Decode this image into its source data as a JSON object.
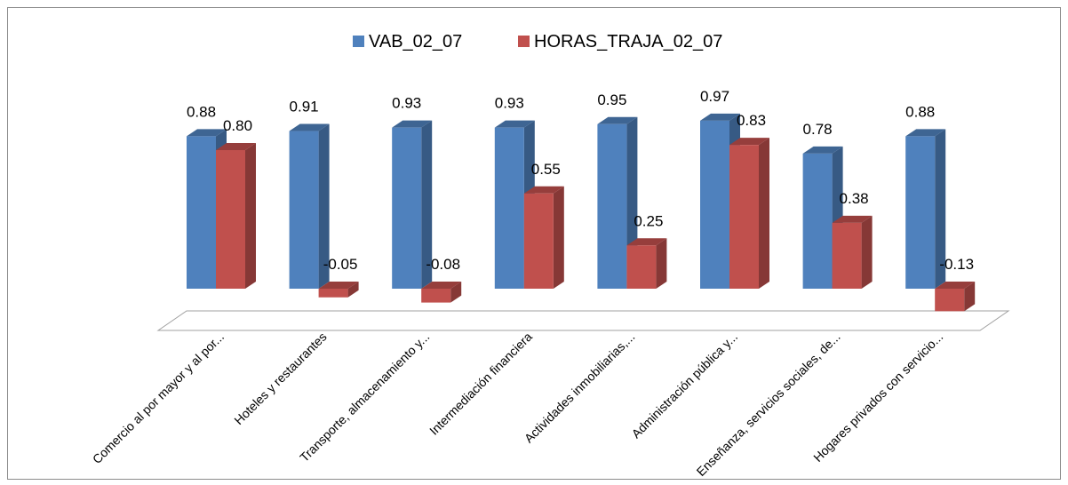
{
  "chart_data": {
    "type": "bar3d",
    "categories": [
      "Comercio al por mayor y al por...",
      "Hoteles y restaurantes",
      "Transporte, almacenamiento y...",
      "Intermediación financiera",
      "Actividades inmobiliarias,...",
      "Administración pública y...",
      "Enseñanza, servicios sociales, de...",
      "Hogares privados con servicio..."
    ],
    "series": [
      {
        "name": "VAB_02_07",
        "color": "#4f81bd",
        "values": [
          0.88,
          0.91,
          0.93,
          0.93,
          0.95,
          0.97,
          0.78,
          0.88
        ],
        "value_labels": [
          "0.88",
          "0.91",
          "0.93",
          "0.93",
          "0.95",
          "0.97",
          "0.78",
          "0.88"
        ]
      },
      {
        "name": "HORAS_TRAJA_02_07",
        "color": "#c0504d",
        "values": [
          0.8,
          -0.05,
          -0.08,
          0.55,
          0.25,
          0.83,
          0.38,
          -0.13
        ],
        "value_labels": [
          "0.80",
          "-0.05",
          "-0.08",
          "0.55",
          "0.25",
          "0.83",
          "0.38",
          "-0.13"
        ]
      }
    ],
    "legend": "top"
  }
}
